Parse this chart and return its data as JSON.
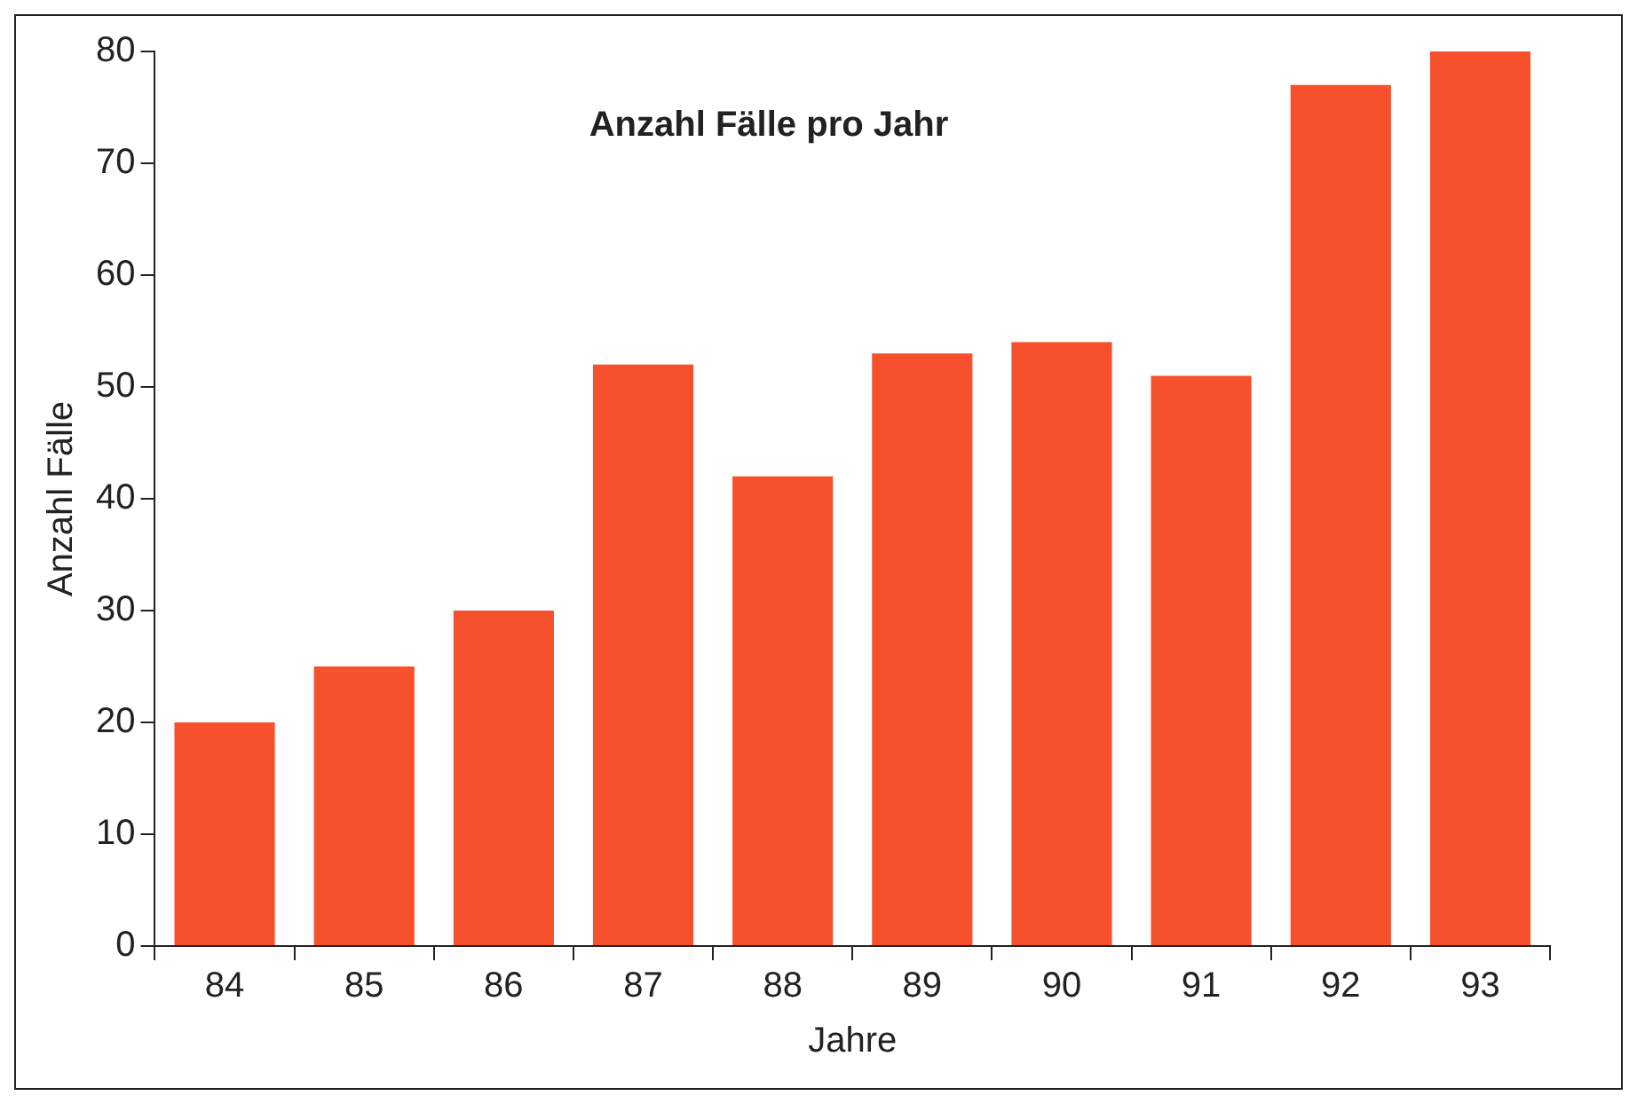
{
  "chart_data": {
    "type": "bar",
    "title": "Anzahl Fälle pro Jahr",
    "xlabel": "Jahre",
    "ylabel": "Anzahl Fälle",
    "categories": [
      "84",
      "85",
      "86",
      "87",
      "88",
      "89",
      "90",
      "91",
      "92",
      "93"
    ],
    "values": [
      20,
      25,
      30,
      52,
      42,
      53,
      54,
      51,
      77,
      80
    ],
    "color": "#f7502c",
    "ylim": [
      0,
      80
    ],
    "yticks": [
      0,
      10,
      20,
      30,
      40,
      50,
      60,
      70,
      80
    ]
  }
}
